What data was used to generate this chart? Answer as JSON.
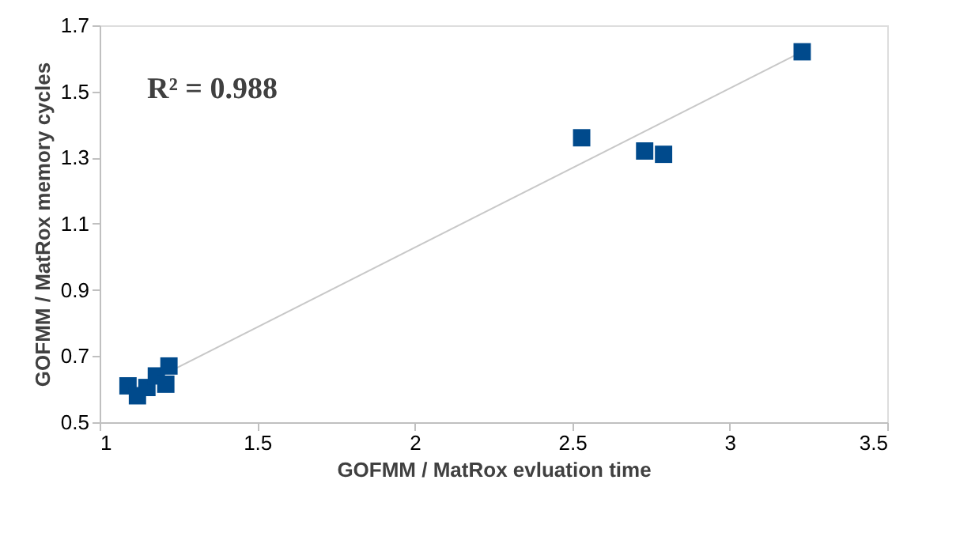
{
  "chart_data": {
    "type": "scatter",
    "xlabel": "GOFMM / MatRox evluation time",
    "ylabel": "GOFMM / MatRox memory cycles",
    "marker": "square",
    "xlim": [
      1,
      3.5
    ],
    "xticks": [
      1,
      1.5,
      2,
      2.5,
      3,
      3.5
    ],
    "ylim": [
      0.5,
      1.7
    ],
    "yticks": [
      0.5,
      0.7,
      0.9,
      1.1,
      1.3,
      1.5,
      1.7
    ],
    "annotations": [
      "R² = 0.988"
    ],
    "series": [
      {
        "color": "#004a8c",
        "x": [
          1.09,
          1.12,
          1.15,
          1.18,
          1.21,
          1.22,
          2.53,
          2.73,
          2.79,
          3.23
        ],
        "values": [
          0.61,
          0.58,
          0.605,
          0.64,
          0.615,
          0.67,
          1.36,
          1.32,
          1.31,
          1.62
        ]
      },
      {
        "type": "line",
        "marker": "none",
        "color": "#c8c8c8",
        "x": [
          1.09,
          3.23
        ],
        "values": [
          0.59,
          1.62
        ]
      }
    ]
  }
}
